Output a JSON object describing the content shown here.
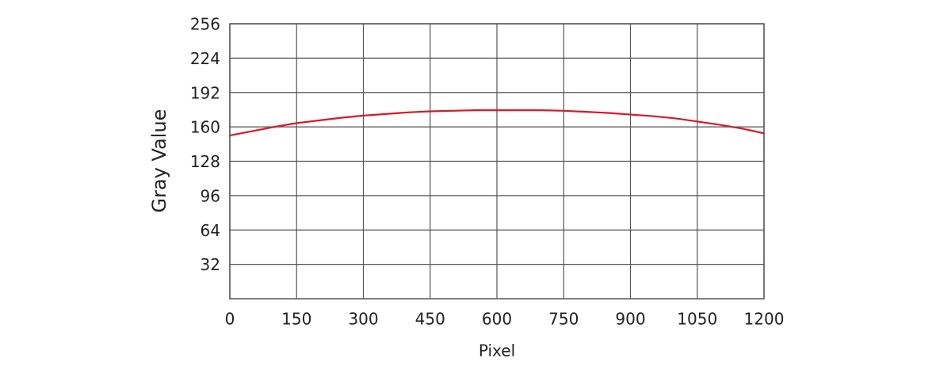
{
  "chart_data": {
    "type": "line",
    "x_label": "Pixel",
    "y_label": "Gray Value",
    "x": [
      0,
      50,
      100,
      150,
      200,
      250,
      300,
      350,
      400,
      450,
      500,
      550,
      600,
      650,
      700,
      750,
      800,
      850,
      900,
      950,
      1000,
      1050,
      1100,
      1150,
      1200
    ],
    "series": [
      {
        "color": "#d7182a",
        "values": [
          152,
          156,
          160,
          163.5,
          166,
          168.5,
          170.5,
          172,
          173.5,
          174.5,
          175,
          175.5,
          175.5,
          175.5,
          175.5,
          175,
          174,
          173,
          171.5,
          170,
          168,
          165,
          162,
          158.5,
          154
        ]
      }
    ],
    "xlim": [
      0,
      1200
    ],
    "xticks": [
      0,
      150,
      300,
      450,
      600,
      750,
      900,
      1050,
      1200
    ],
    "ylim": [
      0,
      256
    ],
    "yticks": [
      32,
      64,
      96,
      128,
      160,
      192,
      224,
      256
    ],
    "grid": true
  }
}
